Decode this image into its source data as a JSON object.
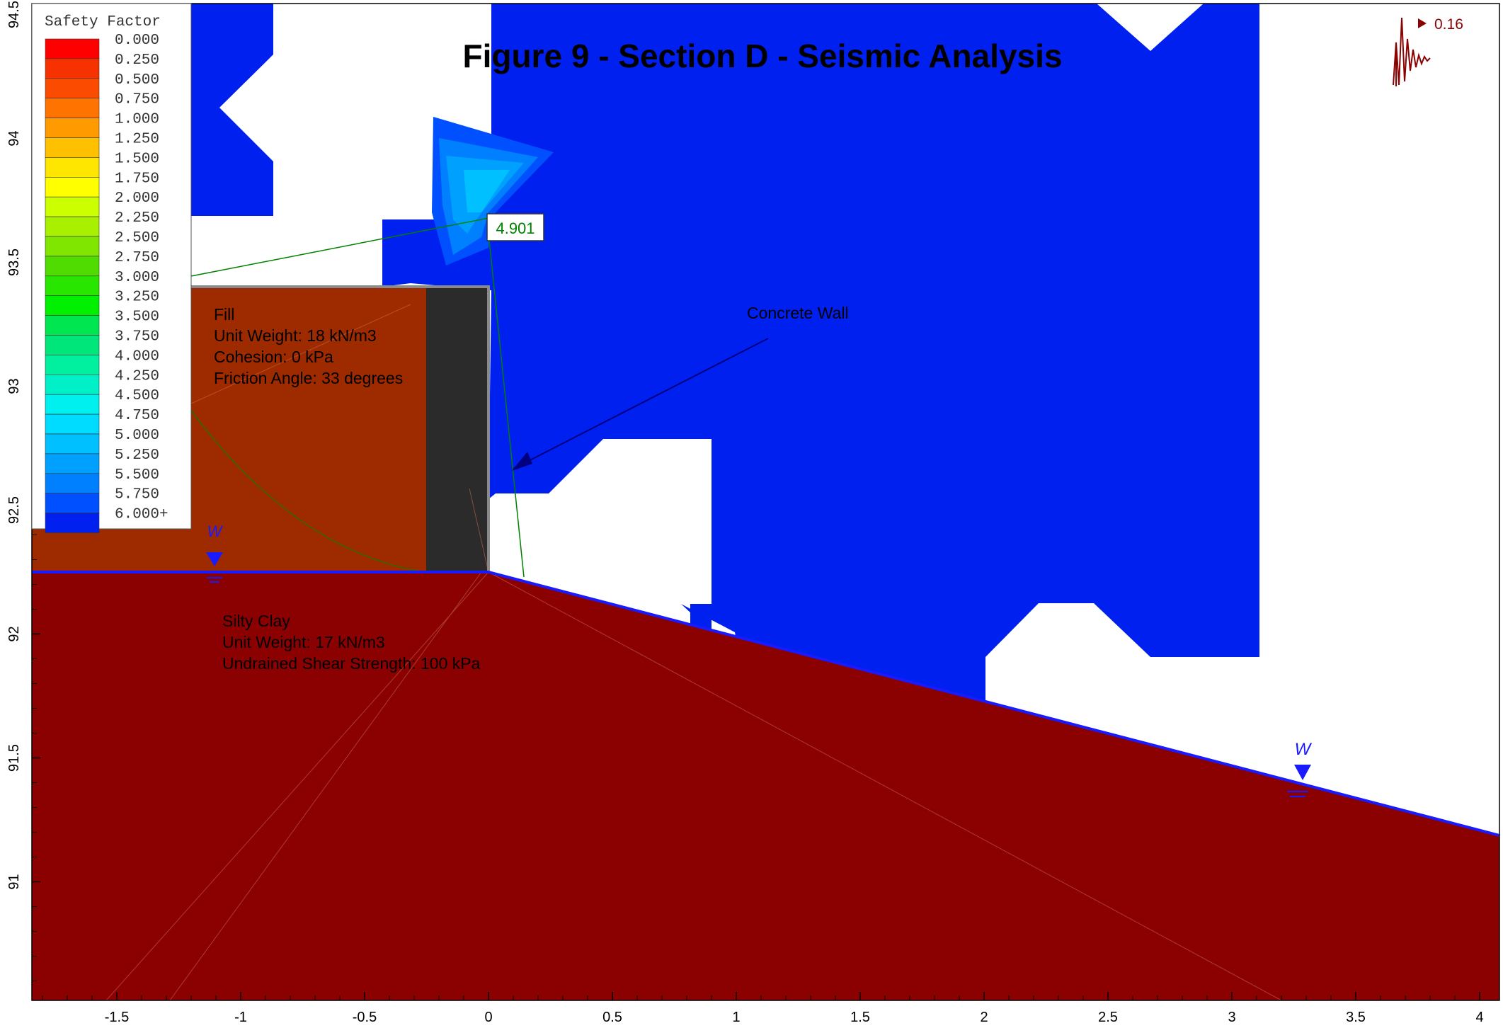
{
  "title": "Figure 9 - Section D - Seismic Analysis",
  "seismic_coefficient": "0.16",
  "critical_factor": "4.901",
  "legend": {
    "title": "Safety Factor",
    "entries": [
      {
        "label": "0.000",
        "color": "#ff0000"
      },
      {
        "label": "0.250",
        "color": "#f53200"
      },
      {
        "label": "0.500",
        "color": "#fa4b00"
      },
      {
        "label": "0.750",
        "color": "#ff7300"
      },
      {
        "label": "1.000",
        "color": "#ff9a00"
      },
      {
        "label": "1.250",
        "color": "#ffc000"
      },
      {
        "label": "1.500",
        "color": "#ffe600"
      },
      {
        "label": "1.750",
        "color": "#ffff00"
      },
      {
        "label": "2.000",
        "color": "#ccff00"
      },
      {
        "label": "2.250",
        "color": "#a8f000"
      },
      {
        "label": "2.500",
        "color": "#80e600"
      },
      {
        "label": "2.750",
        "color": "#50dc00"
      },
      {
        "label": "3.000",
        "color": "#28e600"
      },
      {
        "label": "3.250",
        "color": "#00f000"
      },
      {
        "label": "3.500",
        "color": "#00e650"
      },
      {
        "label": "3.750",
        "color": "#00e67a"
      },
      {
        "label": "4.000",
        "color": "#00f0a0"
      },
      {
        "label": "4.250",
        "color": "#00f0c8"
      },
      {
        "label": "4.500",
        "color": "#00f0f0"
      },
      {
        "label": "4.750",
        "color": "#00dcff"
      },
      {
        "label": "5.000",
        "color": "#00c0ff"
      },
      {
        "label": "5.250",
        "color": "#00a0ff"
      },
      {
        "label": "5.500",
        "color": "#0080ff"
      },
      {
        "label": "5.750",
        "color": "#0050ff"
      },
      {
        "label": "6.000+",
        "color": "#0020f0"
      }
    ]
  },
  "materials": {
    "fill": {
      "lines": [
        "Fill",
        "Unit Weight: 18 kN/m3",
        "Cohesion: 0 kPa",
        "Friction Angle: 33 degrees"
      ],
      "color": "#9e2a00"
    },
    "clay": {
      "lines": [
        "Silty Clay",
        "Unit Weight: 17 kN/m3",
        "Undrained Shear Strength: 100 kPa"
      ],
      "color": "#8b0000"
    },
    "wall": {
      "label": "Concrete Wall",
      "color": "#2b2b2b"
    }
  },
  "water_marker": "W",
  "axes": {
    "x_ticks": [
      "-1.5",
      "-1",
      "-0.5",
      "0",
      "0.5",
      "1",
      "1.5",
      "2",
      "2.5",
      "3",
      "3.5",
      "4"
    ],
    "y_ticks": [
      "94.5",
      "94",
      "93.5",
      "93",
      "92.5",
      "92",
      "91.5",
      "91"
    ]
  },
  "colors": {
    "slip_surface": "#0020f0",
    "water_line": "#1a1aff",
    "annotation_green": "#008000"
  }
}
